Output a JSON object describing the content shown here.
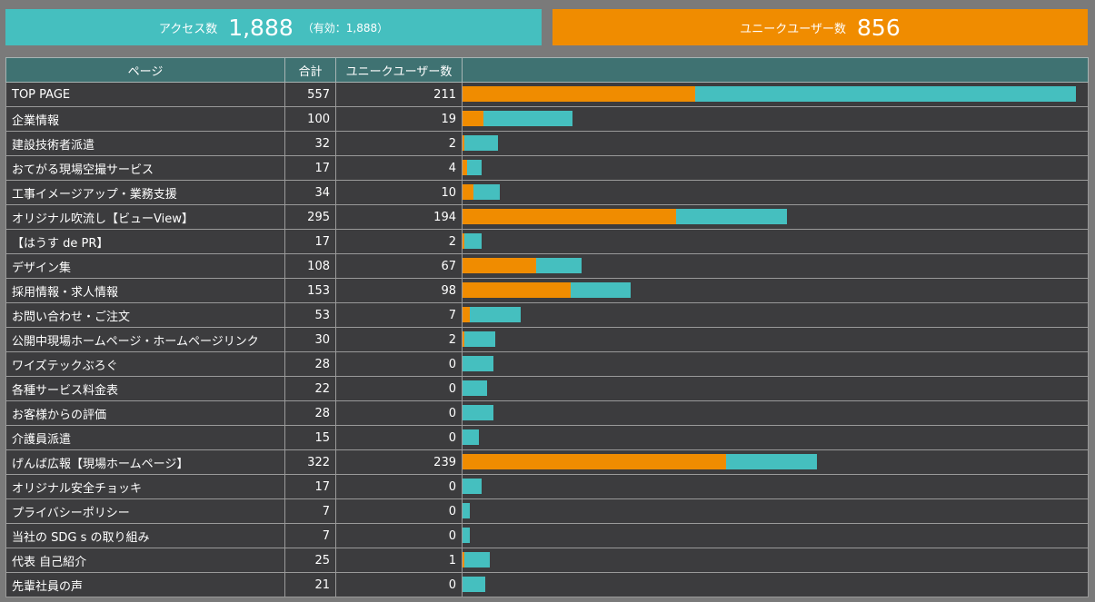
{
  "summary": {
    "access_label": "アクセス数",
    "access_value": "1,888",
    "access_valid": "（有効：1,888）",
    "unique_label": "ユニークユーザー数",
    "unique_value": "856"
  },
  "table": {
    "headers": {
      "page": "ページ",
      "total": "合計",
      "unique": "ユニークユーザー数"
    },
    "max_total": 557,
    "colors": {
      "total_bar": "#45bfbf",
      "unique_bar": "#f08c00",
      "link": "#5fe3de"
    },
    "rows": [
      {
        "page": "TOP PAGE",
        "total": 557,
        "unique": 211
      },
      {
        "page": "企業情報",
        "total": 100,
        "unique": 19
      },
      {
        "page": "建設技術者派遣",
        "total": 32,
        "unique": 2
      },
      {
        "page": "おてがる現場空撮サービス",
        "total": 17,
        "unique": 4
      },
      {
        "page": "工事イメージアップ・業務支援",
        "total": 34,
        "unique": 10
      },
      {
        "page": "オリジナル吹流し【ビューView】",
        "total": 295,
        "unique": 194
      },
      {
        "page": "【はうす de PR】",
        "total": 17,
        "unique": 2
      },
      {
        "page": "デザイン集",
        "total": 108,
        "unique": 67
      },
      {
        "page": "採用情報・求人情報",
        "total": 153,
        "unique": 98
      },
      {
        "page": "お問い合わせ・ご注文",
        "total": 53,
        "unique": 7
      },
      {
        "page": "公開中現場ホームページ・ホームページリンク",
        "total": 30,
        "unique": 2
      },
      {
        "page": "ワイズテックぶろぐ",
        "total": 28,
        "unique": 0
      },
      {
        "page": "各種サービス料金表",
        "total": 22,
        "unique": 0
      },
      {
        "page": "お客様からの評価",
        "total": 28,
        "unique": 0
      },
      {
        "page": "介護員派遣",
        "total": 15,
        "unique": 0
      },
      {
        "page": "げんば広報【現場ホームページ】",
        "total": 322,
        "unique": 239
      },
      {
        "page": "オリジナル安全チョッキ",
        "total": 17,
        "unique": 0
      },
      {
        "page": "プライバシーポリシー",
        "total": 7,
        "unique": 0
      },
      {
        "page": "当社の SDG s の取り組み",
        "total": 7,
        "unique": 0
      },
      {
        "page": "代表 自己紹介",
        "total": 25,
        "unique": 1
      },
      {
        "page": "先輩社員の声",
        "total": 21,
        "unique": 0
      }
    ]
  }
}
